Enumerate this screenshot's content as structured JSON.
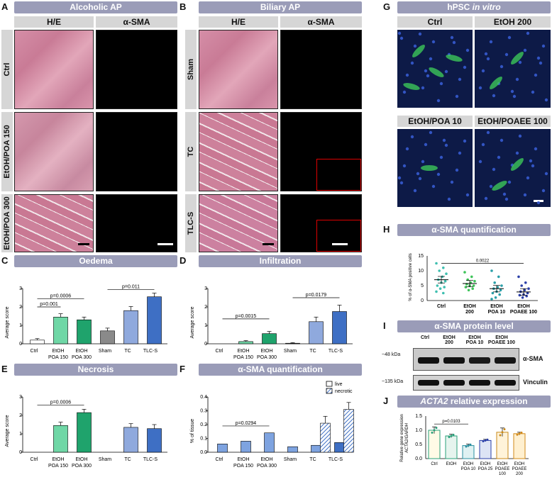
{
  "panels": {
    "A": "A",
    "B": "B",
    "C": "C",
    "D": "D",
    "E": "E",
    "F": "F",
    "G": "G",
    "H": "H",
    "I": "I",
    "J": "J"
  },
  "headers": {
    "A": "Alcoholic AP",
    "B": "Biliary AP",
    "G_pre": "hPSC ",
    "G_em": "in vitro",
    "C": "Oedema",
    "D": "Infiltration",
    "E": "Necrosis",
    "F": "α-SMA quantification",
    "H": "α-SMA quantification",
    "I": "α-SMA protein level",
    "J_em": "ACTA2",
    "J_post": " relative expression"
  },
  "col_labels": {
    "he": "H/E",
    "sma": "α-SMA"
  },
  "rows_A": [
    "Ctrl",
    "EtOH/POA 150",
    "EtOH/POA 300"
  ],
  "rows_B": [
    "Sham",
    "TC",
    "TLC-S"
  ],
  "G_labels": [
    "Ctrl",
    "EtOH 200",
    "EtOH/POA 10",
    "EtOH/POAEE 100"
  ],
  "colors": {
    "header": "#9a9cb8",
    "ctrl": "#ffffff",
    "poa150": "#6fd7a6",
    "poa300": "#1fa36c",
    "sham": "#8a8a8a",
    "tc": "#8fa9dd",
    "tlcs": "#3e6fc4",
    "green_cells": "#3fd25a",
    "nuclei": "#3a5fd8"
  },
  "chart_data": [
    {
      "id": "C",
      "type": "bar",
      "categories": [
        "Ctrl",
        "EtOH POA 150",
        "EtOH POA 300",
        "Sham",
        "TC",
        "TLC-S"
      ],
      "values": [
        0.2,
        1.45,
        1.3,
        0.7,
        1.8,
        2.55
      ],
      "errors": [
        0.08,
        0.18,
        0.15,
        0.15,
        0.22,
        0.2
      ],
      "ylabel": "Average score",
      "ylim": [
        0,
        3
      ],
      "yticks": [
        0,
        1,
        2,
        3
      ],
      "annotations": [
        {
          "text": "p=0.001",
          "from": 0,
          "to": 1,
          "y": 2.0
        },
        {
          "text": "p=0.0006",
          "from": 0,
          "to": 2,
          "y": 2.45
        },
        {
          "text": "p=0.011",
          "from": 3,
          "to": 5,
          "y": 2.95
        }
      ]
    },
    {
      "id": "D",
      "type": "bar",
      "categories": [
        "Ctrl",
        "EtOH POA 150",
        "EtOH POA 300",
        "Sham",
        "TC",
        "TLC-S"
      ],
      "values": [
        0,
        0.12,
        0.55,
        0.03,
        1.2,
        1.75
      ],
      "errors": [
        0,
        0.05,
        0.12,
        0.03,
        0.25,
        0.35
      ],
      "ylabel": "Average score",
      "ylim": [
        0,
        3
      ],
      "yticks": [
        0,
        1,
        2,
        3
      ],
      "annotations": [
        {
          "text": "p=0.0015",
          "from": 0,
          "to": 2,
          "y": 1.35
        },
        {
          "text": "p=0.0179",
          "from": 3,
          "to": 5,
          "y": 2.5
        }
      ]
    },
    {
      "id": "E",
      "type": "bar",
      "categories": [
        "Ctrl",
        "EtOH POA 150",
        "EtOH POA 300",
        "Sham",
        "TC",
        "TLC-S"
      ],
      "values": [
        0,
        1.45,
        2.15,
        0,
        1.35,
        1.28
      ],
      "errors": [
        0,
        0.18,
        0.18,
        0,
        0.2,
        0.22
      ],
      "ylabel": "Average score",
      "ylim": [
        0,
        3
      ],
      "yticks": [
        0,
        1,
        2,
        3
      ],
      "annotations": [
        {
          "text": "p=0.0006",
          "from": 0,
          "to": 2,
          "y": 2.55
        }
      ]
    },
    {
      "id": "F",
      "type": "bar",
      "categories": [
        "Ctrl",
        "EtOH POA 150",
        "EtOH POA 300",
        "Sham",
        "TC",
        "TLC-S"
      ],
      "series": [
        {
          "name": "live",
          "values": [
            0.06,
            0.08,
            0.14,
            0.04,
            0.05,
            0.07
          ]
        },
        {
          "name": "necrotic",
          "values": [
            null,
            null,
            null,
            null,
            0.21,
            0.31
          ]
        }
      ],
      "ylabel": "% of tissue",
      "ylim": [
        0,
        0.4
      ],
      "yticks": [
        0.0,
        0.1,
        0.2,
        0.3,
        0.4
      ],
      "annotations": [
        {
          "text": "p=0.0294",
          "from": 0,
          "to": 2,
          "y": 0.19
        }
      ]
    },
    {
      "id": "H",
      "type": "scatter",
      "categories": [
        "Ctrl",
        "EtOH 200",
        "EtOH POA 10",
        "EtOH POAEE 100"
      ],
      "means": [
        7.0,
        5.7,
        4.0,
        2.9
      ],
      "ylabel": "% of α-SMA positive cells",
      "ylim": [
        0,
        15
      ],
      "yticks": [
        0,
        5,
        10,
        15
      ],
      "annotations": [
        {
          "text": "0.0022",
          "from": 0,
          "to": 3,
          "y": 12.5
        }
      ],
      "points": [
        [
          12.5,
          11,
          10,
          9,
          8,
          7,
          6.5,
          6,
          5,
          4.5,
          4,
          3,
          2.5
        ],
        [
          9.5,
          8,
          7,
          6.5,
          6,
          5.5,
          5,
          5,
          4.5,
          4,
          3.5
        ],
        [
          10,
          8,
          6,
          5,
          4.5,
          4,
          3.5,
          3,
          2.5,
          2,
          1,
          0.5
        ],
        [
          8,
          6,
          5,
          4,
          3.5,
          3,
          2.5,
          2,
          1.8,
          1.5,
          1
        ]
      ]
    },
    {
      "id": "J",
      "type": "bar",
      "categories": [
        "Ctrl",
        "EtOH",
        "EtOH POA 10",
        "EtOH POA 25",
        "EtOH POAEE 100",
        "EtOH POAEE 200"
      ],
      "values": [
        1.0,
        0.8,
        0.46,
        0.64,
        0.93,
        0.88
      ],
      "errors": [
        0.12,
        0.06,
        0.05,
        0.04,
        0.15,
        0.05
      ],
      "ylabel": "Relative gene expression ACTA2/GAPDH",
      "ylim": [
        0,
        1.5
      ],
      "yticks": [
        0.0,
        0.5,
        1.0,
        1.5
      ],
      "annotations": [
        {
          "text": "p=0.0103",
          "from": 0,
          "to": 2,
          "y": 1.22
        }
      ]
    }
  ],
  "ticks3": [
    "0",
    "1",
    "2",
    "3"
  ],
  "ticksF": [
    "0.0",
    "0.1",
    "0.2",
    "0.3",
    "0.4"
  ],
  "ticksH": [
    "0",
    "5",
    "10",
    "15"
  ],
  "ticksJ": [
    "0.0",
    "0.5",
    "1.0",
    "1.5"
  ],
  "x6": [
    "Ctrl",
    "EtOH",
    "EtOH",
    "Sham",
    "TC",
    "TLC-S"
  ],
  "x6b": [
    "",
    "POA 150",
    "POA 300",
    "",
    "",
    ""
  ],
  "yl": {
    "score": "Average score",
    "tissue": "% of tissue",
    "cells": "% of α-SMA positive cells",
    "relg": "Relative gene expression",
    "relg2": "ACTA2/GAPDH"
  },
  "legendF": [
    "live",
    "necrotic"
  ],
  "H_x": [
    [
      "Ctrl",
      ""
    ],
    [
      "EtOH",
      "200"
    ],
    [
      "EtOH",
      "POA 10"
    ],
    [
      "EtOH",
      "POAEE 100"
    ]
  ],
  "I": {
    "lanes": [
      [
        "Ctrl",
        ""
      ],
      [
        "EtOH",
        "200"
      ],
      [
        "EtOH",
        "POA 10"
      ],
      [
        "EtOH",
        "POAEE 100"
      ]
    ],
    "mw1": "~48 kDa",
    "mw2": "~135 kDa",
    "band1": "α-SMA",
    "band2": "Vinculin"
  },
  "J_x": [
    [
      "Ctrl",
      ""
    ],
    [
      "EtOH",
      ""
    ],
    [
      "EtOH",
      "POA 10"
    ],
    [
      "EtOH",
      "POA 25"
    ],
    [
      "EtOH",
      "POAEE",
      "100"
    ],
    [
      "EtOH",
      "POAEE",
      "200"
    ]
  ]
}
